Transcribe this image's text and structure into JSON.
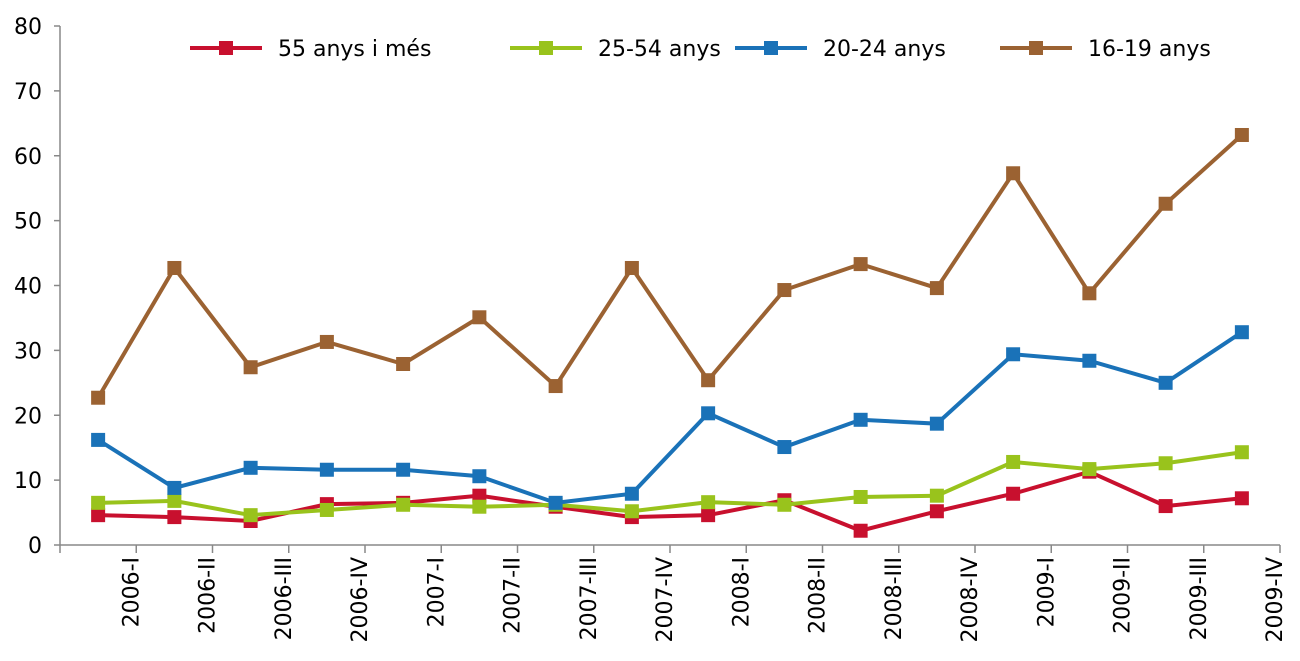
{
  "chart_data": {
    "type": "line",
    "categories": [
      "2006-I",
      "2006-II",
      "2006-III",
      "2006-IV",
      "2007-I",
      "2007-II",
      "2007-III",
      "2007-IV",
      "2008-I",
      "2008-II",
      "2008-III",
      "2008-IV",
      "2009-I",
      "2009-II",
      "2009-III",
      "2009-IV"
    ],
    "series": [
      {
        "name": "55 anys i més",
        "color": "#c8102e",
        "values": [
          4.6,
          4.3,
          3.7,
          6.3,
          6.5,
          7.6,
          5.9,
          4.3,
          4.6,
          6.9,
          2.2,
          5.2,
          7.9,
          11.3,
          6.0,
          7.2
        ]
      },
      {
        "name": "25-54 anys",
        "color": "#99c31c",
        "values": [
          6.5,
          6.8,
          4.6,
          5.4,
          6.2,
          5.9,
          6.2,
          5.2,
          6.6,
          6.2,
          7.4,
          7.6,
          12.8,
          11.7,
          12.6,
          14.3
        ]
      },
      {
        "name": "20-24 anys",
        "color": "#1a72b8",
        "values": [
          16.2,
          8.8,
          11.9,
          11.6,
          11.6,
          10.6,
          6.5,
          7.9,
          20.3,
          15.1,
          19.3,
          18.7,
          29.4,
          28.4,
          25.0,
          32.8
        ]
      },
      {
        "name": "16-19 anys",
        "color": "#9b6232",
        "values": [
          22.7,
          42.7,
          27.4,
          31.3,
          27.9,
          35.1,
          24.5,
          42.7,
          25.4,
          39.3,
          43.3,
          39.6,
          57.3,
          38.8,
          52.6,
          63.2
        ]
      }
    ],
    "ylim": [
      0,
      80
    ],
    "yticks": [
      0,
      10,
      20,
      30,
      40,
      50,
      60,
      70,
      80
    ],
    "grid": false
  }
}
